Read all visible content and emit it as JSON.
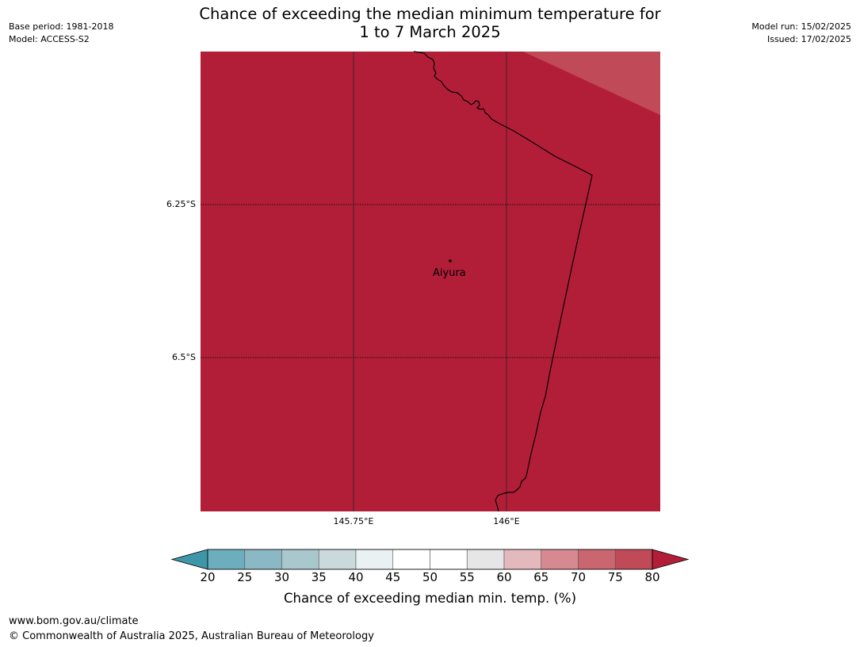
{
  "header": {
    "title_line1": "Chance of exceeding the median minimum temperature for",
    "title_line2": "1 to 7 March 2025",
    "base_period": "Base period: 1981-2018",
    "model": "Model: ACCESS-S2",
    "model_run": "Model run: 15/02/2025",
    "issued": "Issued: 17/02/2025"
  },
  "map": {
    "latitude_labels": [
      "6.25°S",
      "6.5°S"
    ],
    "longitude_labels": [
      "145.75°E",
      "146°E"
    ],
    "places": [
      {
        "name": "Aiyura",
        "marker": "dot"
      }
    ],
    "fill_color": "#b21e38",
    "corner_color": "#c14a58",
    "boundary_color": "#000000"
  },
  "colorbar": {
    "ticks": [
      "20",
      "25",
      "30",
      "35",
      "40",
      "45",
      "50",
      "55",
      "60",
      "65",
      "70",
      "75",
      "80"
    ],
    "colors": [
      "#3e97a8",
      "#6caebd",
      "#8ab8c5",
      "#a8c8ce",
      "#cad9dc",
      "#eaf1f2",
      "#ffffff",
      "#ffffff",
      "#e6e6e6",
      "#e3b9bd",
      "#d68991",
      "#c96670",
      "#c14a58",
      "#b21e38"
    ],
    "label": "Chance of exceeding median min. temp. (%)"
  },
  "footer": {
    "website": "www.bom.gov.au/climate",
    "copyright": "© Commonwealth of Australia 2025, Australian Bureau of Meteorology"
  }
}
